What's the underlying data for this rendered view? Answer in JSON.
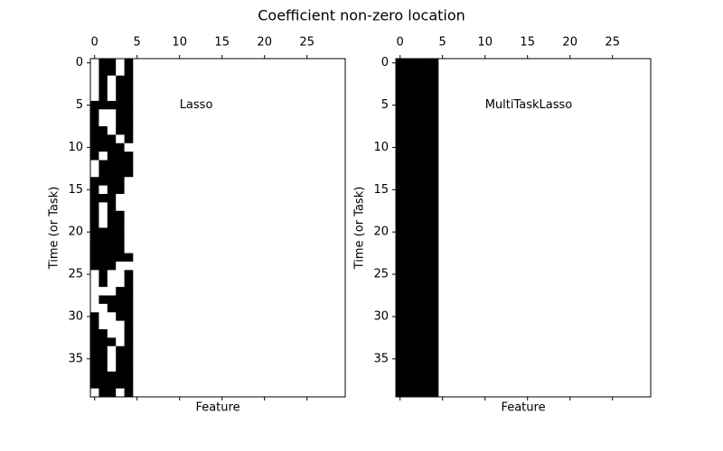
{
  "title": "Coefficient non-zero location",
  "chart_data": [
    {
      "type": "spy",
      "annotation": "Lasso",
      "xlabel": "Feature",
      "ylabel": "Time (or Task)",
      "xlim": [
        -0.5,
        29.5
      ],
      "ylim": [
        39.5,
        -0.5
      ],
      "xticks": [
        0,
        5,
        10,
        15,
        20,
        25
      ],
      "yticks": [
        0,
        5,
        10,
        15,
        20,
        25,
        30,
        35
      ],
      "color": "#000000",
      "z": [
        [
          0,
          1,
          1,
          0,
          1
        ],
        [
          0,
          1,
          1,
          0,
          1
        ],
        [
          0,
          1,
          0,
          1,
          1
        ],
        [
          0,
          1,
          0,
          1,
          1
        ],
        [
          0,
          1,
          0,
          1,
          1
        ],
        [
          1,
          1,
          1,
          1,
          1
        ],
        [
          1,
          0,
          0,
          1,
          1
        ],
        [
          1,
          0,
          0,
          1,
          1
        ],
        [
          1,
          1,
          0,
          1,
          1
        ],
        [
          1,
          1,
          1,
          0,
          1
        ],
        [
          1,
          1,
          1,
          1,
          0
        ],
        [
          1,
          0,
          1,
          1,
          1
        ],
        [
          0,
          1,
          1,
          1,
          1
        ],
        [
          0,
          1,
          1,
          1,
          1
        ],
        [
          1,
          1,
          1,
          1,
          0
        ],
        [
          1,
          0,
          1,
          1,
          0
        ],
        [
          1,
          1,
          1,
          0,
          0
        ],
        [
          1,
          0,
          1,
          0,
          0
        ],
        [
          1,
          0,
          1,
          1,
          0
        ],
        [
          1,
          0,
          1,
          1,
          0
        ],
        [
          1,
          1,
          1,
          1,
          0
        ],
        [
          1,
          1,
          1,
          1,
          0
        ],
        [
          1,
          1,
          1,
          1,
          0
        ],
        [
          1,
          1,
          1,
          1,
          1
        ],
        [
          1,
          1,
          1,
          0,
          0
        ],
        [
          0,
          1,
          0,
          0,
          1
        ],
        [
          0,
          1,
          0,
          0,
          1
        ],
        [
          0,
          0,
          0,
          1,
          1
        ],
        [
          0,
          1,
          1,
          1,
          1
        ],
        [
          0,
          0,
          1,
          1,
          1
        ],
        [
          1,
          0,
          0,
          1,
          1
        ],
        [
          1,
          0,
          0,
          0,
          1
        ],
        [
          1,
          1,
          0,
          0,
          1
        ],
        [
          1,
          1,
          1,
          0,
          1
        ],
        [
          1,
          1,
          0,
          1,
          1
        ],
        [
          1,
          1,
          0,
          1,
          1
        ],
        [
          1,
          1,
          0,
          1,
          1
        ],
        [
          1,
          1,
          1,
          1,
          1
        ],
        [
          1,
          1,
          1,
          1,
          1
        ],
        [
          0,
          1,
          1,
          0,
          1
        ]
      ]
    },
    {
      "type": "spy",
      "annotation": "MultiTaskLasso",
      "xlabel": "Feature",
      "ylabel": "Time (or Task)",
      "xlim": [
        -0.5,
        29.5
      ],
      "ylim": [
        39.5,
        -0.5
      ],
      "xticks": [
        0,
        5,
        10,
        15,
        20,
        25
      ],
      "yticks": [
        0,
        5,
        10,
        15,
        20,
        25,
        30,
        35
      ],
      "color": "#000000",
      "z": [
        [
          1,
          1,
          1,
          1,
          1
        ],
        [
          1,
          1,
          1,
          1,
          1
        ],
        [
          1,
          1,
          1,
          1,
          1
        ],
        [
          1,
          1,
          1,
          1,
          1
        ],
        [
          1,
          1,
          1,
          1,
          1
        ],
        [
          1,
          1,
          1,
          1,
          1
        ],
        [
          1,
          1,
          1,
          1,
          1
        ],
        [
          1,
          1,
          1,
          1,
          1
        ],
        [
          1,
          1,
          1,
          1,
          1
        ],
        [
          1,
          1,
          1,
          1,
          1
        ],
        [
          1,
          1,
          1,
          1,
          1
        ],
        [
          1,
          1,
          1,
          1,
          1
        ],
        [
          1,
          1,
          1,
          1,
          1
        ],
        [
          1,
          1,
          1,
          1,
          1
        ],
        [
          1,
          1,
          1,
          1,
          1
        ],
        [
          1,
          1,
          1,
          1,
          1
        ],
        [
          1,
          1,
          1,
          1,
          1
        ],
        [
          1,
          1,
          1,
          1,
          1
        ],
        [
          1,
          1,
          1,
          1,
          1
        ],
        [
          1,
          1,
          1,
          1,
          1
        ],
        [
          1,
          1,
          1,
          1,
          1
        ],
        [
          1,
          1,
          1,
          1,
          1
        ],
        [
          1,
          1,
          1,
          1,
          1
        ],
        [
          1,
          1,
          1,
          1,
          1
        ],
        [
          1,
          1,
          1,
          1,
          1
        ],
        [
          1,
          1,
          1,
          1,
          1
        ],
        [
          1,
          1,
          1,
          1,
          1
        ],
        [
          1,
          1,
          1,
          1,
          1
        ],
        [
          1,
          1,
          1,
          1,
          1
        ],
        [
          1,
          1,
          1,
          1,
          1
        ],
        [
          1,
          1,
          1,
          1,
          1
        ],
        [
          1,
          1,
          1,
          1,
          1
        ],
        [
          1,
          1,
          1,
          1,
          1
        ],
        [
          1,
          1,
          1,
          1,
          1
        ],
        [
          1,
          1,
          1,
          1,
          1
        ],
        [
          1,
          1,
          1,
          1,
          1
        ],
        [
          1,
          1,
          1,
          1,
          1
        ],
        [
          1,
          1,
          1,
          1,
          1
        ],
        [
          1,
          1,
          1,
          1,
          1
        ],
        [
          1,
          1,
          1,
          1,
          1
        ]
      ]
    }
  ]
}
